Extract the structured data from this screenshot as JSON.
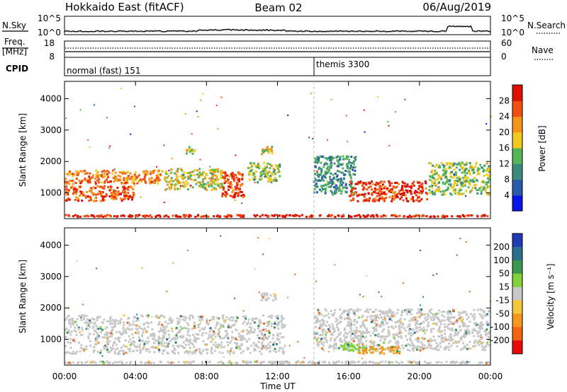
{
  "header": {
    "radar": "Hokkaido East (fitACF)",
    "beam": "Beam 02",
    "date": "06/Aug/2019"
  },
  "noise_panel": {
    "left_label": "N.Sky",
    "left_ticks": [
      "10^5",
      "10^0"
    ],
    "right_label": "N.Search",
    "right_ticks": [
      "10^5",
      "10^0"
    ]
  },
  "freq_panel": {
    "left_label_1": "Freq.",
    "left_label_2": "[MHz]",
    "left_ticks": [
      "18",
      "8"
    ],
    "right_label": "Nave",
    "right_ticks": [
      "60",
      "0"
    ]
  },
  "cpid_panel": {
    "label": "CPID",
    "modes": [
      {
        "name": "normal (fast) 151",
        "start_hour": 0
      },
      {
        "name": "themis 3300",
        "start_hour": 14
      }
    ]
  },
  "x_axis": {
    "title": "Time UT",
    "ticks": [
      "00:00",
      "04:00",
      "08:00",
      "12:00",
      "16:00",
      "20:00",
      "00:00"
    ],
    "range_hours": [
      0,
      24
    ]
  },
  "y_axis": {
    "title": "Slant Range [km]",
    "ticks": [
      1000,
      2000,
      3000,
      4000
    ],
    "range": [
      180,
      4550
    ]
  },
  "power_colorbar": {
    "title": "Power [dB]",
    "ticks": [
      "28",
      "24",
      "20",
      "16",
      "12",
      "8",
      "4"
    ],
    "colors": [
      "#0a14e6",
      "#2b5aa8",
      "#3c8a7c",
      "#56b45a",
      "#f0c81e",
      "#f59219",
      "#f0500f",
      "#dc0f05"
    ]
  },
  "velocity_colorbar": {
    "title": "Velocity [m s⁻¹]",
    "ticks": [
      "200",
      "100",
      "50",
      "15",
      "-15",
      "-50",
      "-100",
      "-200"
    ],
    "colors": [
      "#1e3cb4",
      "#2d6e8c",
      "#3c9650",
      "#82d23c",
      "#c8c8c8",
      "#f5c83c",
      "#f5961e",
      "#f06414",
      "#e60a0a"
    ]
  },
  "chart_data": {
    "type": "heatmap",
    "title": "Hokkaido East (fitACF) Beam 02 06/Aug/2019",
    "xlabel": "Time UT",
    "ylabel": "Slant Range [km]",
    "xlim_hours": [
      0,
      24
    ],
    "ylim_km": [
      180,
      4550
    ],
    "power_scale_db": [
      0,
      30
    ],
    "velocity_scale_ms": [
      -250,
      250
    ],
    "power_region_note": "approximate regions of backscatter power [dB] read from the image",
    "power_regions": [
      {
        "t0": 0.0,
        "t1": 5.6,
        "r0": 1250,
        "r1": 1750,
        "power_db": 22
      },
      {
        "t0": 0.0,
        "t1": 4.0,
        "r0": 700,
        "r1": 1250,
        "power_db": 24
      },
      {
        "t0": 5.6,
        "t1": 9.0,
        "r0": 1050,
        "r1": 1800,
        "power_db": 16
      },
      {
        "t0": 8.8,
        "t1": 10.2,
        "r0": 800,
        "r1": 1700,
        "power_db": 26
      },
      {
        "t0": 10.3,
        "t1": 12.2,
        "r0": 1300,
        "r1": 2000,
        "power_db": 14
      },
      {
        "t0": 11.0,
        "t1": 11.8,
        "r0": 2200,
        "r1": 2500,
        "power_db": 18
      },
      {
        "t0": 6.8,
        "t1": 7.5,
        "r0": 2200,
        "r1": 2500,
        "power_db": 16
      },
      {
        "t0": 14.0,
        "t1": 16.5,
        "r0": 900,
        "r1": 2200,
        "power_db": 10
      },
      {
        "t0": 16.0,
        "t1": 20.5,
        "r0": 700,
        "r1": 1400,
        "power_db": 26
      },
      {
        "t0": 20.5,
        "t1": 24.0,
        "r0": 900,
        "r1": 2000,
        "power_db": 14
      },
      {
        "t0": 0.0,
        "t1": 24.0,
        "r0": 200,
        "r1": 330,
        "power_db": 28
      }
    ],
    "velocity_region_note": "approximate regions of Doppler velocity [m s^-1] read from the image",
    "velocity_regions": [
      {
        "t0": 0.0,
        "t1": 12.5,
        "r0": 500,
        "r1": 1800,
        "velocity": 0
      },
      {
        "t0": 14.0,
        "t1": 24.0,
        "r0": 600,
        "r1": 2000,
        "velocity": 0
      },
      {
        "t0": 16.5,
        "t1": 19.0,
        "r0": 500,
        "r1": 800,
        "velocity": -60
      },
      {
        "t0": 15.5,
        "t1": 17.0,
        "r0": 600,
        "r1": 900,
        "velocity": 30
      },
      {
        "t0": 11.0,
        "t1": 12.0,
        "r0": 2200,
        "r1": 2500,
        "velocity": 0
      },
      {
        "t0": 0.0,
        "t1": 24.0,
        "r0": 200,
        "r1": 330,
        "velocity": 0
      }
    ],
    "noise_note": "N.Sky stays near 10^0 all day with a raised step between about 21:30 and 23:00",
    "nave_note": "Freq. trace near 11 MHz throughout; Nave dotted trace near 16"
  }
}
